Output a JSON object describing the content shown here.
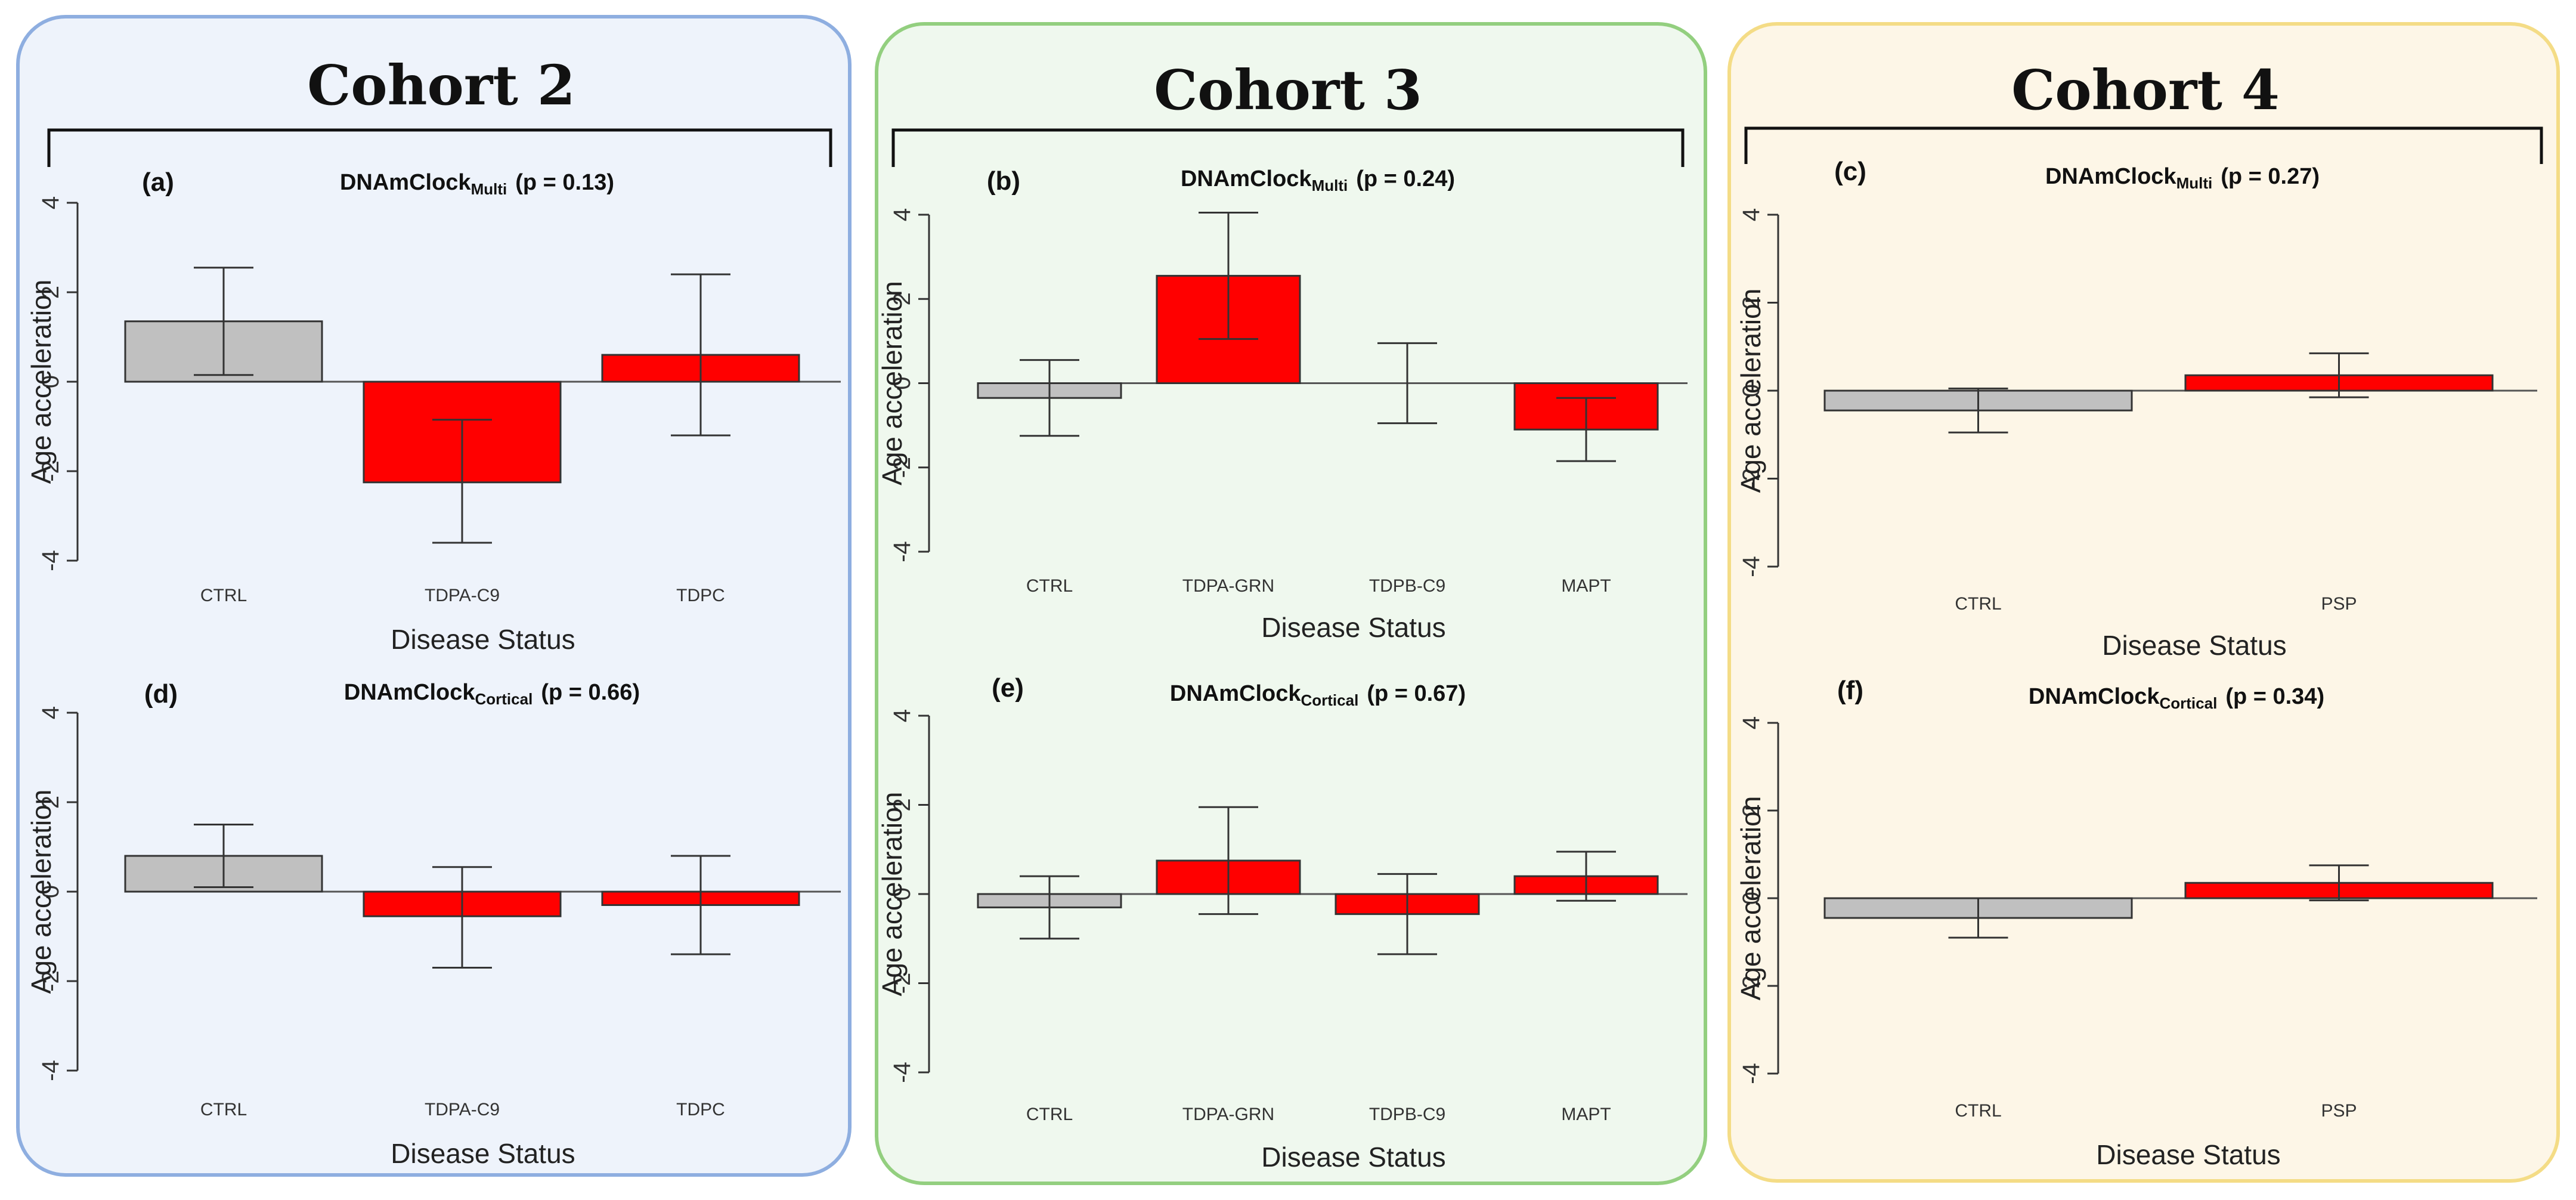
{
  "colors": {
    "control_bar": "#c0c0c0",
    "disease_bar": "#ff0000",
    "cohort2_bg": "#eef3fb",
    "cohort2_border": "#8eaee0",
    "cohort3_bg": "#eff8ee",
    "cohort3_border": "#93cf7f",
    "cohort4_bg": "#fdf6e7",
    "cohort4_border": "#f4dc86"
  },
  "cohorts": [
    {
      "title": "Cohort 2"
    },
    {
      "title": "Cohort 3"
    },
    {
      "title": "Cohort 4"
    }
  ],
  "chart_data": [
    {
      "type": "bar",
      "cohort": "Cohort 2",
      "panel": "(a)",
      "title": {
        "main": "DNAmClock",
        "sub": "Multi",
        "p": "(p = 0.13)"
      },
      "categories": [
        "CTRL",
        "TDPA-C9",
        "TDPC"
      ],
      "values": [
        1.35,
        -2.25,
        0.6
      ],
      "error_low": [
        0.15,
        -3.6,
        -1.2
      ],
      "error_high": [
        2.55,
        -0.85,
        2.4
      ],
      "xlabel": "Disease Status",
      "ylabel": "Age acceleration",
      "ylim": [
        -4,
        4
      ],
      "yticks": [
        "4",
        "2",
        "0",
        "-2",
        "-4"
      ]
    },
    {
      "type": "bar",
      "cohort": "Cohort 3",
      "panel": "(b)",
      "title": {
        "main": "DNAmClock",
        "sub": "Multi",
        "p": "(p = 0.24)"
      },
      "categories": [
        "CTRL",
        "TDPA-GRN",
        "TDPB-C9",
        "MAPT"
      ],
      "values": [
        -0.35,
        2.55,
        0.0,
        -1.1
      ],
      "error_low": [
        -1.25,
        1.05,
        -0.95,
        -1.85
      ],
      "error_high": [
        0.55,
        4.05,
        0.95,
        -0.35
      ],
      "xlabel": "Disease Status",
      "ylabel": "Age acceleration",
      "ylim": [
        -4,
        4
      ],
      "yticks": [
        "4",
        "2",
        "0",
        "-2",
        "-4"
      ]
    },
    {
      "type": "bar",
      "cohort": "Cohort 4",
      "panel": "(c)",
      "title": {
        "main": "DNAmClock",
        "sub": "Multi",
        "p": "(p = 0.27)"
      },
      "categories": [
        "CTRL",
        "PSP"
      ],
      "values": [
        -0.45,
        0.35
      ],
      "error_low": [
        -0.95,
        -0.15
      ],
      "error_high": [
        0.05,
        0.85
      ],
      "xlabel": "Disease Status",
      "ylabel": "Age acceleration",
      "ylim": [
        -4,
        4
      ],
      "yticks": [
        "4",
        "2",
        "0",
        "-2",
        "-4"
      ]
    },
    {
      "type": "bar",
      "cohort": "Cohort 2",
      "panel": "(d)",
      "title": {
        "main": "DNAmClock",
        "sub": "Cortical",
        "p": "(p = 0.66)"
      },
      "categories": [
        "CTRL",
        "TDPA-C9",
        "TDPC"
      ],
      "values": [
        0.8,
        -0.55,
        -0.3
      ],
      "error_low": [
        0.1,
        -1.7,
        -1.4
      ],
      "error_high": [
        1.5,
        0.55,
        0.8
      ],
      "xlabel": "Disease Status",
      "ylabel": "Age acceleration",
      "ylim": [
        -4,
        4
      ],
      "yticks": [
        "4",
        "2",
        "0",
        "-2",
        "-4"
      ]
    },
    {
      "type": "bar",
      "cohort": "Cohort 3",
      "panel": "(e)",
      "title": {
        "main": "DNAmClock",
        "sub": "Cortical",
        "p": "(p = 0.67)"
      },
      "categories": [
        "CTRL",
        "TDPA-GRN",
        "TDPB-C9",
        "MAPT"
      ],
      "values": [
        -0.3,
        0.75,
        -0.45,
        0.4
      ],
      "error_low": [
        -1.0,
        -0.45,
        -1.35,
        -0.15
      ],
      "error_high": [
        0.4,
        1.95,
        0.45,
        0.95
      ],
      "xlabel": "Disease Status",
      "ylabel": "Age acceleration",
      "ylim": [
        -4,
        4
      ],
      "yticks": [
        "4",
        "2",
        "0",
        "-2",
        "-4"
      ]
    },
    {
      "type": "bar",
      "cohort": "Cohort 4",
      "panel": "(f)",
      "title": {
        "main": "DNAmClock",
        "sub": "Cortical",
        "p": "(p = 0.34)"
      },
      "categories": [
        "CTRL",
        "PSP"
      ],
      "values": [
        -0.45,
        0.35
      ],
      "error_low": [
        -0.9,
        -0.05
      ],
      "error_high": [
        0.0,
        0.75
      ],
      "xlabel": "Disease Status",
      "ylabel": "Age acceleration",
      "ylim": [
        -4,
        4
      ],
      "yticks": [
        "4",
        "2",
        "0",
        "-2",
        "-4"
      ]
    }
  ]
}
